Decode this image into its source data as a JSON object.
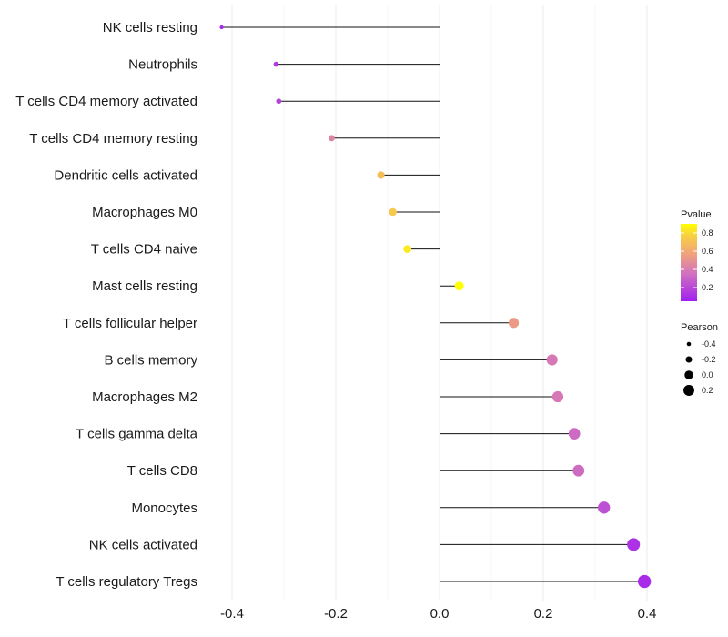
{
  "chart_data": {
    "type": "lollipop",
    "title": "",
    "xlabel": "",
    "ylabel": "",
    "xlim": [
      -0.45,
      0.45
    ],
    "xticks": [
      -0.4,
      -0.2,
      0.0,
      0.2,
      0.4
    ],
    "xtick_labels": [
      "-0.4",
      "-0.2",
      "0.0",
      "0.2",
      "0.4"
    ],
    "baseline": 0.0,
    "grid": true,
    "categories": [
      "NK cells resting",
      "Neutrophils",
      "T cells CD4 memory activated",
      "T cells CD4 memory resting",
      "Dendritic cells activated",
      "Macrophages M0",
      "T cells CD4 naive",
      "Mast cells resting",
      "T cells follicular helper",
      "B cells memory",
      "Macrophages M2",
      "T cells gamma delta",
      "T cells CD8",
      "Monocytes",
      "NK cells activated",
      "T cells regulatory  Tregs"
    ],
    "pearson": [
      -0.42,
      -0.315,
      -0.31,
      -0.208,
      -0.113,
      -0.09,
      -0.062,
      0.038,
      0.143,
      0.217,
      0.228,
      0.26,
      0.268,
      0.317,
      0.374,
      0.395
    ],
    "pvalue": [
      0.08,
      0.12,
      0.14,
      0.35,
      0.6,
      0.65,
      0.8,
      0.9,
      0.45,
      0.3,
      0.3,
      0.25,
      0.25,
      0.18,
      0.1,
      0.08
    ],
    "color_legend": {
      "title": "Pvalue",
      "ticks": [
        0.8,
        0.6,
        0.4,
        0.2
      ],
      "tick_labels": [
        "0.8",
        "0.6",
        "0.4",
        "0.2"
      ],
      "range": [
        0.05,
        0.9
      ],
      "colors": [
        "#a020f0",
        "#d070c0",
        "#f0a080",
        "#f8d040",
        "#ffff00"
      ]
    },
    "size_legend": {
      "title": "Pearson",
      "values": [
        -0.4,
        -0.2,
        0.0,
        0.2
      ],
      "labels": [
        "-0.4",
        "-0.2",
        "0.0",
        "0.2"
      ]
    },
    "legend_position": "right"
  }
}
